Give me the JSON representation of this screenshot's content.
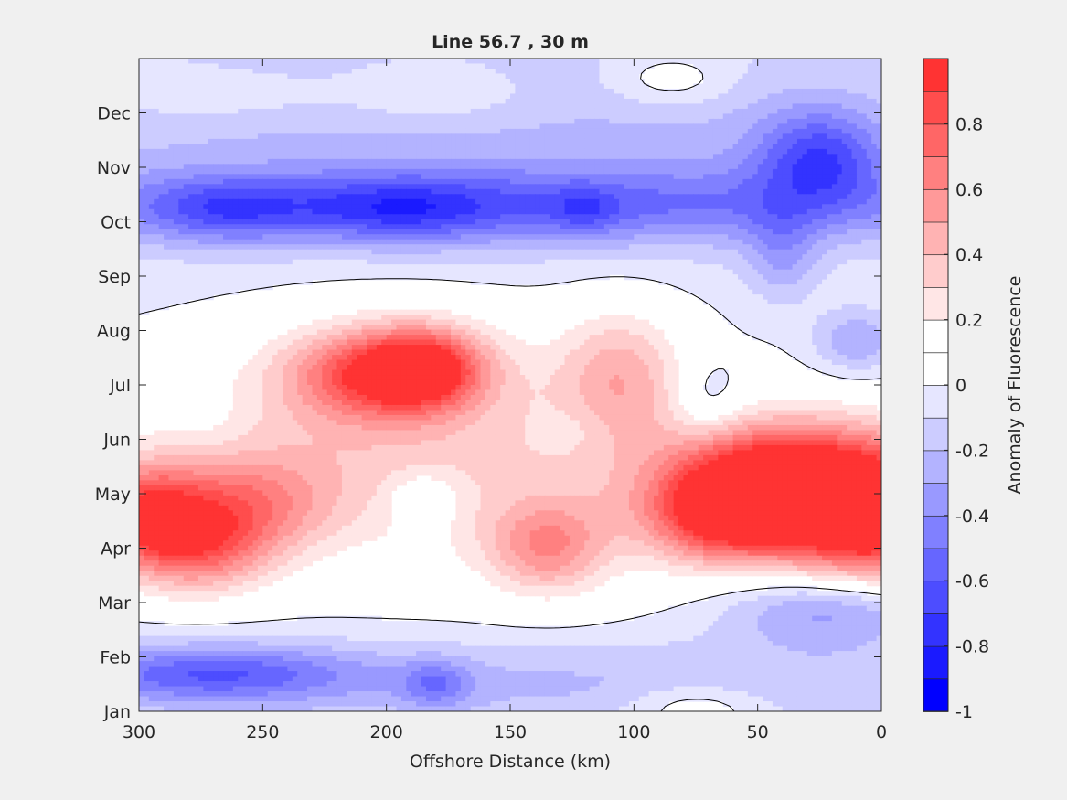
{
  "chart_data": {
    "type": "heatmap",
    "title": "Line 56.7 , 30 m",
    "xlabel": "Offshore Distance (km)",
    "ylabel": "",
    "x_reversed": true,
    "xlim": [
      300,
      0
    ],
    "xticks": [
      {
        "value": 300,
        "label": "300"
      },
      {
        "value": 250,
        "label": "250"
      },
      {
        "value": 200,
        "label": "200"
      },
      {
        "value": 150,
        "label": "150"
      },
      {
        "value": 100,
        "label": "100"
      },
      {
        "value": 50,
        "label": "50"
      },
      {
        "value": 0,
        "label": "0"
      }
    ],
    "ylim_months": [
      0,
      12
    ],
    "yticks": [
      {
        "value": 0,
        "label": "Jan"
      },
      {
        "value": 1,
        "label": "Feb"
      },
      {
        "value": 2,
        "label": "Mar"
      },
      {
        "value": 3,
        "label": "Apr"
      },
      {
        "value": 4,
        "label": "May"
      },
      {
        "value": 5,
        "label": "Jun"
      },
      {
        "value": 6,
        "label": "Jul"
      },
      {
        "value": 7,
        "label": "Aug"
      },
      {
        "value": 8,
        "label": "Sep"
      },
      {
        "value": 9,
        "label": "Oct"
      },
      {
        "value": 10,
        "label": "Nov"
      },
      {
        "value": 11,
        "label": "Dec"
      }
    ],
    "colorbar": {
      "label": "Anomaly of Fluorescence",
      "range": [
        -1,
        1
      ],
      "levels": [
        -1,
        -0.9,
        -0.8,
        -0.7,
        -0.6,
        -0.5,
        -0.4,
        -0.3,
        -0.2,
        -0.1,
        0,
        0.1,
        0.2,
        0.3,
        0.4,
        0.5,
        0.6,
        0.7,
        0.8,
        0.9,
        1.0
      ],
      "colors": [
        "#0000ff",
        "#1a1aff",
        "#3333ff",
        "#4d4dff",
        "#6666ff",
        "#8080ff",
        "#9999ff",
        "#b3b3ff",
        "#ccccff",
        "#e6e6ff",
        "#ffffff",
        "#ffffff",
        "#ffe6e6",
        "#ffcccc",
        "#ffb3b3",
        "#ff9999",
        "#ff8080",
        "#ff6666",
        "#ff4d4d",
        "#ff3333",
        "#ff1a1a"
      ],
      "ticks": [
        {
          "value": 0.8,
          "label": "0.8"
        },
        {
          "value": 0.6,
          "label": "0.6"
        },
        {
          "value": 0.4,
          "label": "0.4"
        },
        {
          "value": 0.2,
          "label": "0.2"
        },
        {
          "value": 0,
          "label": "0"
        },
        {
          "value": -0.2,
          "label": "-0.2"
        },
        {
          "value": -0.4,
          "label": "-0.4"
        },
        {
          "value": -0.6,
          "label": "-0.6"
        },
        {
          "value": -0.8,
          "label": "-0.8"
        },
        {
          "value": -1,
          "label": "-1"
        }
      ]
    },
    "contour_lines": [
      0
    ],
    "features": [
      {
        "x": 2,
        "month": 3.55,
        "value": 0.95,
        "sx": 25,
        "sy": 0.85
      },
      {
        "x": 33,
        "month": 4.1,
        "value": 0.65,
        "sx": 40,
        "sy": 0.9
      },
      {
        "x": 40,
        "month": 4.5,
        "value": 0.3,
        "sx": 25,
        "sy": 0.6
      },
      {
        "x": 57,
        "month": 3.8,
        "value": 0.5,
        "sx": 22,
        "sy": 0.7
      },
      {
        "x": 68,
        "month": 3.55,
        "value": 0.35,
        "sx": 20,
        "sy": 0.55
      },
      {
        "x": 105,
        "month": 6.2,
        "value": 0.4,
        "sx": 18,
        "sy": 0.9
      },
      {
        "x": 135,
        "month": 3.0,
        "value": 0.48,
        "sx": 17,
        "sy": 0.6
      },
      {
        "x": 140,
        "month": 4.2,
        "value": 0.2,
        "sx": 60,
        "sy": 1.3
      },
      {
        "x": 185,
        "month": 6.3,
        "value": 0.78,
        "sx": 17,
        "sy": 0.5
      },
      {
        "x": 210,
        "month": 6.2,
        "value": 0.5,
        "sx": 22,
        "sy": 0.55
      },
      {
        "x": 195,
        "month": 6.2,
        "value": 0.25,
        "sx": 45,
        "sy": 1.0
      },
      {
        "x": 258,
        "month": 3.8,
        "value": 0.45,
        "sx": 25,
        "sy": 0.65
      },
      {
        "x": 275,
        "month": 3.0,
        "value": 0.55,
        "sx": 20,
        "sy": 0.6
      },
      {
        "x": 298,
        "month": 3.6,
        "value": 0.72,
        "sx": 16,
        "sy": 0.65
      },
      {
        "x": 240,
        "month": 4.5,
        "value": 0.2,
        "sx": 60,
        "sy": 1.2
      },
      {
        "x": 270,
        "month": 5.3,
        "value": -0.05,
        "sx": 10,
        "sy": 0.4
      },
      {
        "x": 123,
        "month": 5.2,
        "value": -0.08,
        "sx": 10,
        "sy": 0.35
      },
      {
        "x": 185,
        "month": 3.9,
        "value": -0.25,
        "sx": 10,
        "sy": 0.35
      },
      {
        "x": 70,
        "month": 5.7,
        "value": -0.2,
        "sx": 10,
        "sy": 0.5
      },
      {
        "x": 10,
        "month": 6.8,
        "value": -0.3,
        "sx": 12,
        "sy": 0.4
      },
      {
        "x": 150,
        "month": 9.3,
        "value": -0.4,
        "sx": 160,
        "sy": 0.5
      },
      {
        "x": 265,
        "month": 9.2,
        "value": -0.3,
        "sx": 22,
        "sy": 0.4
      },
      {
        "x": 195,
        "month": 9.2,
        "value": -0.3,
        "sx": 28,
        "sy": 0.4
      },
      {
        "x": 120,
        "month": 9.2,
        "value": -0.2,
        "sx": 10,
        "sy": 0.3
      },
      {
        "x": 25,
        "month": 10.2,
        "value": -0.5,
        "sx": 18,
        "sy": 0.6
      },
      {
        "x": 40,
        "month": 8.4,
        "value": -0.25,
        "sx": 10,
        "sy": 0.6
      },
      {
        "x": 150,
        "month": 10.5,
        "value": -0.22,
        "sx": 200,
        "sy": 1.5
      },
      {
        "x": 180,
        "month": 11.3,
        "value": 0.15,
        "sx": 30,
        "sy": 0.4
      },
      {
        "x": 85,
        "month": 11.6,
        "value": 0.2,
        "sx": 18,
        "sy": 0.35
      },
      {
        "x": 270,
        "month": 11.3,
        "value": 0.12,
        "sx": 30,
        "sy": 0.3
      },
      {
        "x": 150,
        "month": 0.5,
        "value": -0.22,
        "sx": 200,
        "sy": 0.6
      },
      {
        "x": 270,
        "month": 0.7,
        "value": -0.45,
        "sx": 40,
        "sy": 0.35
      },
      {
        "x": 180,
        "month": 0.5,
        "value": -0.3,
        "sx": 10,
        "sy": 0.3
      },
      {
        "x": 20,
        "month": 1.9,
        "value": -0.4,
        "sx": 30,
        "sy": 0.5
      },
      {
        "x": 75,
        "month": 0.1,
        "value": 0.2,
        "sx": 20,
        "sy": 0.3
      }
    ]
  }
}
